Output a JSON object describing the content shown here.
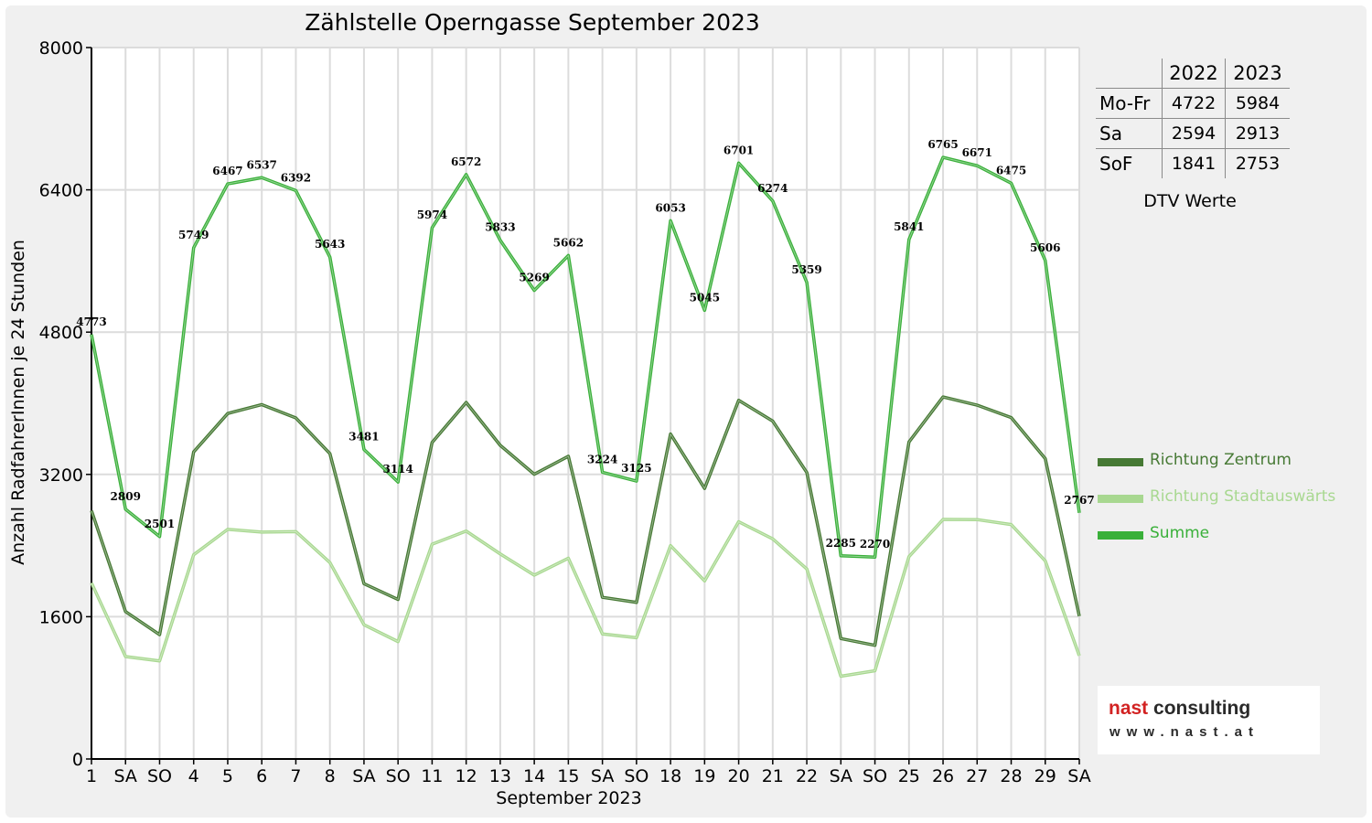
{
  "chart_data": {
    "type": "line",
    "title": "Zählstelle Operngasse September 2023",
    "xlabel": "September 2023",
    "ylabel": "Anzahl RadfahrerInnen je 24 Stunden",
    "ylim": [
      0,
      8000
    ],
    "yticks": [
      0,
      1600,
      3200,
      4800,
      6400,
      8000
    ],
    "grid": true,
    "legend_position": "right",
    "categories": [
      "1",
      "SA",
      "SO",
      "4",
      "5",
      "6",
      "7",
      "8",
      "SA",
      "SO",
      "11",
      "12",
      "13",
      "14",
      "15",
      "SA",
      "SO",
      "18",
      "19",
      "20",
      "21",
      "22",
      "SA",
      "SO",
      "25",
      "26",
      "27",
      "28",
      "29",
      "SA"
    ],
    "weekend_colors": {
      "SA": "#000000",
      "SO": "#ff0000"
    },
    "series": [
      {
        "name": "Richtung Zentrum",
        "color": "#467934",
        "values": [
          2793,
          1657,
          1398,
          3453,
          3885,
          3985,
          3835,
          3434,
          1971,
          1794,
          3559,
          4009,
          3527,
          3202,
          3404,
          1818,
          1761,
          3654,
          3042,
          4033,
          3799,
          3222,
          1354,
          1278,
          3565,
          4071,
          3979,
          3839,
          3378,
          1606
        ]
      },
      {
        "name": "Richtung Stadtauswärts",
        "color": "#a8d890",
        "values": [
          1980,
          1152,
          1103,
          2296,
          2582,
          2552,
          2557,
          2209,
          1510,
          1320,
          2415,
          2563,
          2306,
          2067,
          2258,
          1406,
          1364,
          2399,
          2003,
          2668,
          2475,
          2137,
          931,
          992,
          2276,
          2694,
          2692,
          2636,
          2228,
          1161
        ]
      },
      {
        "name": "Summe",
        "color": "#3ab03a",
        "values": [
          4773,
          2809,
          2501,
          5749,
          6467,
          6537,
          6392,
          5643,
          3481,
          3114,
          5974,
          6572,
          5833,
          5269,
          5662,
          3224,
          3125,
          6053,
          5045,
          6701,
          6274,
          5359,
          2285,
          2270,
          5841,
          6765,
          6671,
          6475,
          5606,
          2767
        ]
      }
    ],
    "data_labels_series": "Summe"
  },
  "dtv_table": {
    "headers": [
      "",
      "2022",
      "2023"
    ],
    "rows": [
      {
        "label": "Mo-Fr",
        "v2022": "4722",
        "v2023": "5984"
      },
      {
        "label": "Sa",
        "v2022": "2594",
        "v2023": "2913"
      },
      {
        "label": "SoF",
        "v2022": "1841",
        "v2023": "2753"
      }
    ],
    "caption": "DTV Werte"
  },
  "logo": {
    "name_part1": "nast",
    "name_part2": " consulting",
    "url": "www.nast.at"
  }
}
